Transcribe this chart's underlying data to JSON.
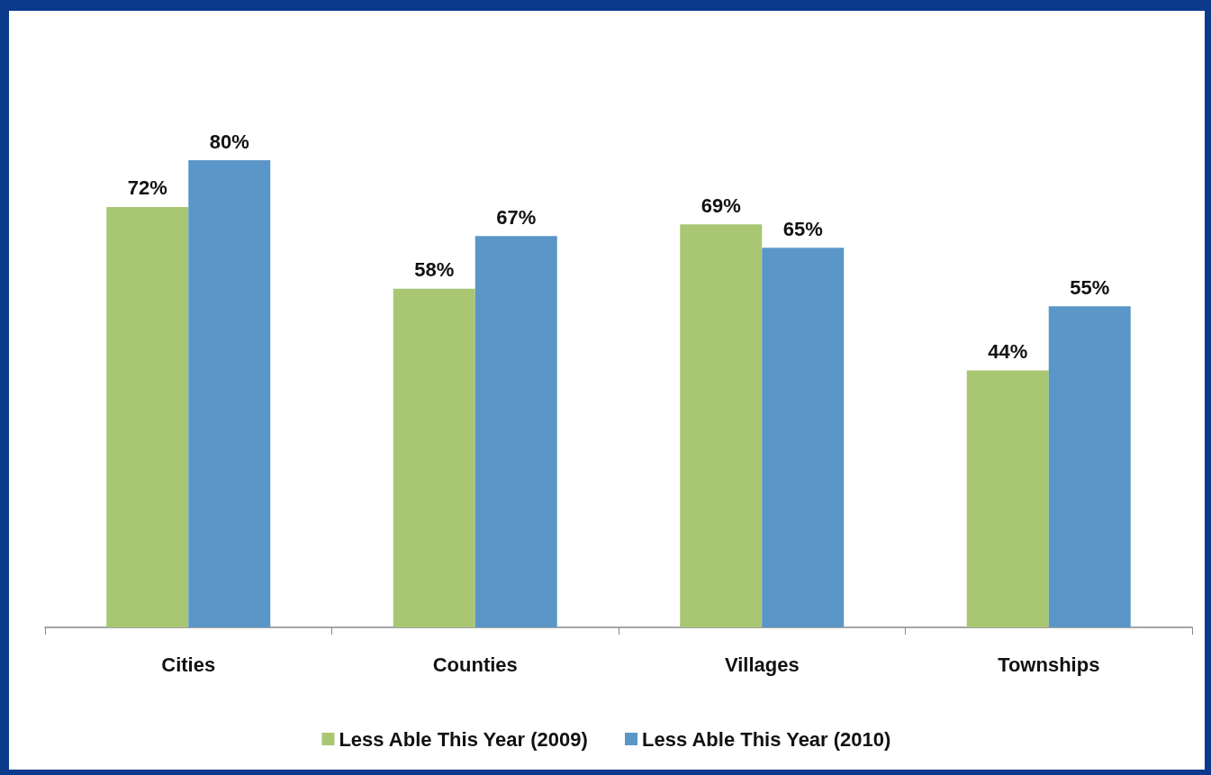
{
  "chart_data": {
    "type": "bar",
    "categories": [
      "Cities",
      "Counties",
      "Villages",
      "Townships"
    ],
    "series": [
      {
        "name": "Less Able This Year (2009)",
        "color": "#a9c673",
        "values": [
          72,
          58,
          69,
          44
        ],
        "value_labels": [
          "72%",
          "58%",
          "69%",
          "44%"
        ]
      },
      {
        "name": "Less Able This Year (2010)",
        "color": "#5b96c8",
        "values": [
          80,
          67,
          65,
          55
        ],
        "value_labels": [
          "80%",
          "67%",
          "65%",
          "55%"
        ]
      }
    ],
    "legend": "bottom"
  }
}
